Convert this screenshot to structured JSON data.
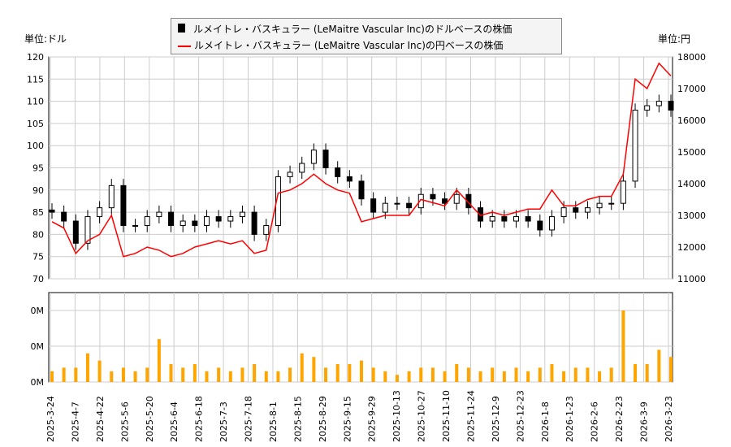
{
  "legend": {
    "usd": "ルメイトレ・バスキュラー (LeMaitre Vascular Inc)のドルベースの株価",
    "jpy": "ルメイトレ・バスキュラー (LeMaitre Vascular Inc)の円ベースの株価"
  },
  "units": {
    "left": "単位:ドル",
    "right": "単位:円"
  },
  "colors": {
    "candle": "#000000",
    "yen_line": "#ff0000",
    "volume": "#ffa500",
    "grid": "#cccccc"
  },
  "chart_data": [
    {
      "type": "candlestick+line",
      "ylim_usd": [
        70,
        120
      ],
      "ylim_jpy": [
        11000,
        18000
      ],
      "yticks_usd": [
        "70",
        "75",
        "80",
        "85",
        "90",
        "95",
        "100",
        "105",
        "110",
        "115",
        "120"
      ],
      "yticks_jpy": [
        "11000",
        "12000",
        "13000",
        "14000",
        "15000",
        "16000",
        "17000",
        "18000"
      ],
      "xticks": [
        "2025-3-24",
        "2025-4-7",
        "2025-4-22",
        "2025-5-6",
        "2025-5-20",
        "2025-6-4",
        "2025-6-18",
        "2025-7-3",
        "2025-7-18",
        "2025-8-1",
        "2025-8-15",
        "2025-8-29",
        "2025-9-15",
        "2025-9-29",
        "2025-10-13",
        "2025-10-27",
        "2025-11-10",
        "2025-11-24",
        "2025-12-9",
        "2025-12-23",
        "2026-1-8",
        "2026-1-23",
        "2026-2-6",
        "2026-2-23",
        "2026-3-9",
        "2026-3-23"
      ],
      "grid": true,
      "usd_close": [
        85,
        83,
        78,
        84,
        86,
        91,
        82,
        82,
        84,
        85,
        82,
        83,
        82,
        84,
        83,
        84,
        85,
        80,
        82,
        93,
        94,
        96,
        99,
        95,
        93,
        92,
        88,
        85,
        87,
        87,
        86,
        89,
        88,
        87,
        89,
        86,
        83,
        84,
        83,
        84,
        83,
        81,
        84,
        86,
        85,
        86,
        87,
        87,
        92,
        108,
        109,
        110,
        108
      ],
      "jpy_close": [
        12800,
        12600,
        11800,
        12200,
        12400,
        13000,
        11700,
        11800,
        12000,
        11900,
        11700,
        11800,
        12000,
        12100,
        12200,
        12100,
        12200,
        11800,
        11900,
        13700,
        13800,
        14000,
        14300,
        14000,
        13800,
        13700,
        12800,
        12900,
        13000,
        13000,
        13000,
        13500,
        13400,
        13300,
        13800,
        13400,
        13000,
        13100,
        13000,
        13100,
        13200,
        13200,
        13800,
        13300,
        13300,
        13500,
        13600,
        13600,
        14300,
        17300,
        17000,
        17800,
        17400
      ]
    },
    {
      "type": "bar",
      "yticks": [
        "0M",
        "0M",
        "0M"
      ],
      "volume": [
        3,
        4,
        4,
        8,
        6,
        3,
        4,
        3,
        4,
        12,
        5,
        4,
        5,
        3,
        4,
        3,
        4,
        5,
        3,
        3,
        4,
        8,
        7,
        4,
        5,
        5,
        6,
        4,
        3,
        2,
        3,
        4,
        4,
        3,
        5,
        4,
        3,
        4,
        3,
        4,
        3,
        4,
        5,
        3,
        4,
        4,
        3,
        4,
        20,
        5,
        5,
        9,
        7
      ]
    }
  ]
}
